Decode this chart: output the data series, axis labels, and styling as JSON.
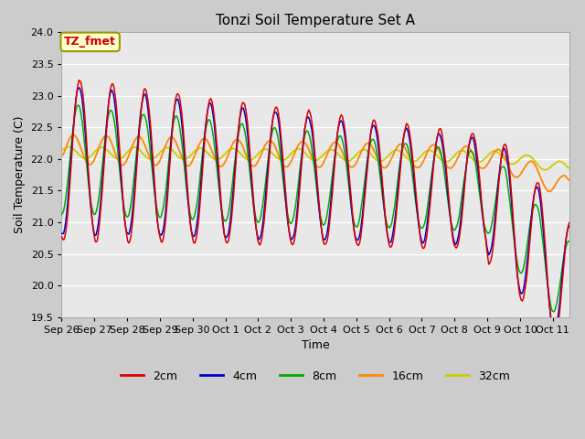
{
  "title": "Tonzi Soil Temperature Set A",
  "xlabel": "Time",
  "ylabel": "Soil Temperature (C)",
  "ylim": [
    19.5,
    24.0
  ],
  "annotation": "TZ_fmet",
  "annotation_color": "#cc0000",
  "annotation_bg": "#ffffcc",
  "annotation_border": "#999900",
  "series": [
    "2cm",
    "4cm",
    "8cm",
    "16cm",
    "32cm"
  ],
  "colors": [
    "#dd0000",
    "#0000cc",
    "#00aa00",
    "#ff8800",
    "#cccc00"
  ],
  "tick_labels": [
    "Sep 26",
    "Sep 27",
    "Sep 28",
    "Sep 29",
    "Sep 30",
    "Oct 1",
    "Oct 2",
    "Oct 3",
    "Oct 4",
    "Oct 5",
    "Oct 6",
    "Oct 7",
    "Oct 8",
    "Oct 9",
    "Oct 10",
    "Oct 11"
  ],
  "yticks": [
    19.5,
    20.0,
    20.5,
    21.0,
    21.5,
    22.0,
    22.5,
    23.0,
    23.5,
    24.0
  ],
  "n_days": 15.5,
  "n_points": 500
}
